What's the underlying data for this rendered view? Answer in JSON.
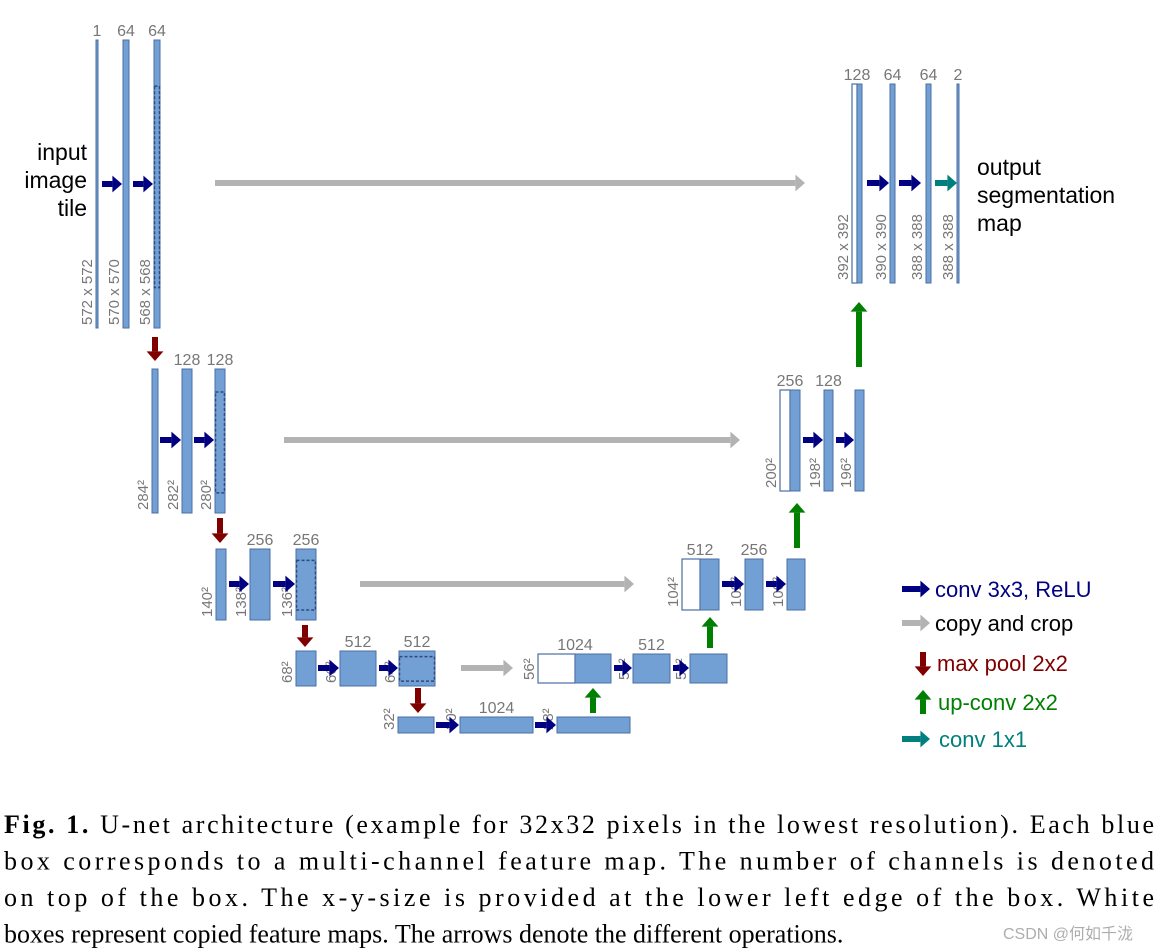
{
  "input_label": [
    "input",
    "image",
    "tile"
  ],
  "output_label": [
    "output",
    "segmentation",
    "map"
  ],
  "boxes": [
    {
      "channels": "1",
      "size": "572 x 572"
    },
    {
      "channels": "64",
      "size": "570 x 570"
    },
    {
      "channels": "64",
      "size": "568 x 568"
    },
    {
      "size": "284²"
    },
    {
      "channels": "128",
      "size": "282²"
    },
    {
      "channels": "128",
      "size": "280²"
    },
    {
      "size": "140²"
    },
    {
      "channels": "256",
      "size": "138²"
    },
    {
      "channels": "256",
      "size": "136²"
    },
    {
      "size": "68²"
    },
    {
      "channels": "512",
      "size": "66²"
    },
    {
      "channels": "512",
      "size": "64²"
    },
    {
      "size": "32²"
    },
    {
      "channels": "1024",
      "size": "30²"
    },
    {
      "size": "28²"
    },
    {
      "channels": "1024",
      "size": "56²"
    },
    {
      "channels": "512",
      "size": "54²"
    },
    {
      "size": "52²"
    },
    {
      "channels": "512",
      "size": "104²"
    },
    {
      "channels": "256",
      "size": "102²"
    },
    {
      "size": "100²"
    },
    {
      "channels": "256",
      "size": "200²"
    },
    {
      "channels": "128",
      "size": "198²"
    },
    {
      "size": "196²"
    },
    {
      "channels": "128",
      "size": "392 x 392"
    },
    {
      "channels": "64",
      "size": "390 x 390"
    },
    {
      "channels": "64",
      "size": "388 x 388"
    },
    {
      "channels": "2",
      "size": "388 x 388"
    }
  ],
  "legend": [
    {
      "label": "conv 3x3, ReLU",
      "color": "#000080"
    },
    {
      "label": "copy and crop",
      "color": "#000000"
    },
    {
      "label": "max pool 2x2",
      "color": "#800000"
    },
    {
      "label": "up-conv 2x2",
      "color": "#007f00"
    },
    {
      "label": "conv 1x1",
      "color": "#007f7f"
    }
  ],
  "caption": {
    "label": "Fig. 1.",
    "lines": [
      "U-net architecture (example for 32x32 pixels in the lowest resolution). Each blue",
      "box corresponds to a multi-channel feature map. The number of channels is denoted",
      "on top of the box. The x-y-size is provided at the lower left edge of the box. White",
      "boxes represent copied feature maps. The arrows denote the different operations."
    ]
  },
  "watermark": "CSDN @何如千泷"
}
